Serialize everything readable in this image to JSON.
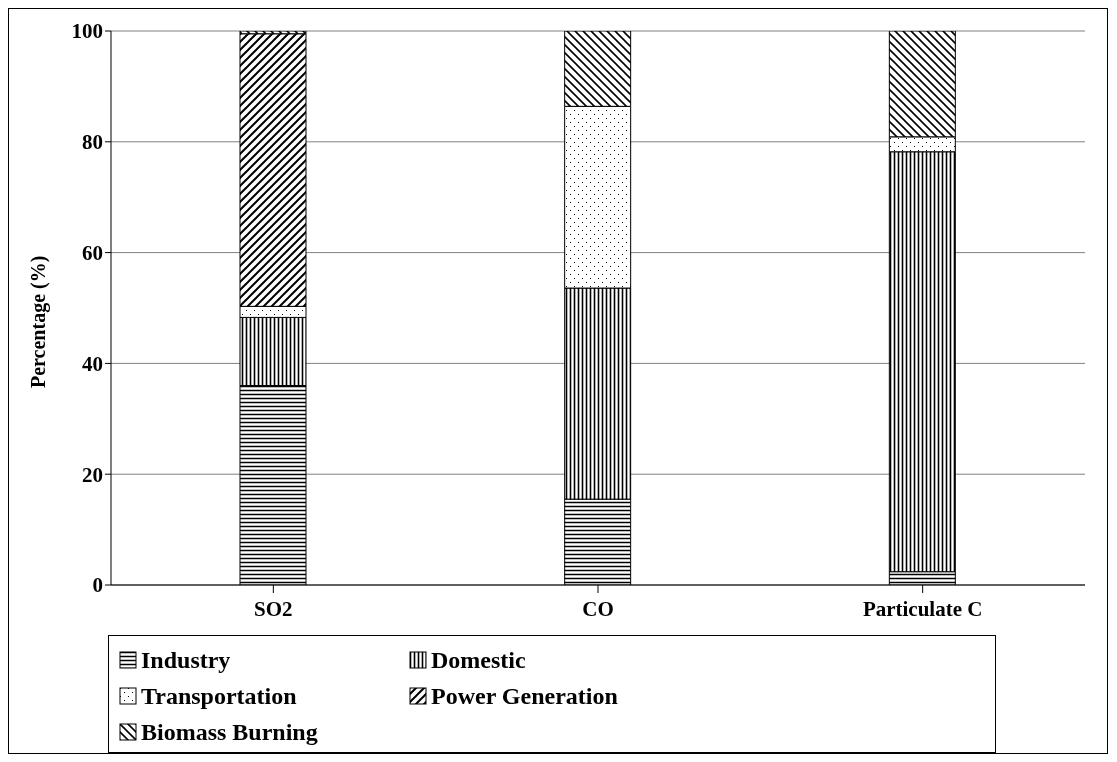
{
  "chart_data": {
    "type": "bar",
    "stacked": true,
    "ylabel": "Percentage (%)",
    "categories": [
      "SO2",
      "CO",
      "Particulate C"
    ],
    "series": [
      {
        "name": "Industry",
        "color": "#000000",
        "values": [
          36,
          15.5,
          2.4
        ]
      },
      {
        "name": "Domestic",
        "color": "#000000",
        "values": [
          12.3,
          38.1,
          75.8
        ]
      },
      {
        "name": "Transportation",
        "color": "#000000",
        "values": [
          2,
          32.8,
          2.7
        ]
      },
      {
        "name": "Power Generation",
        "color": "#000000",
        "values": [
          49.2,
          0,
          0
        ]
      },
      {
        "name": "Biomass Burning",
        "color": "#000000",
        "values": [
          0.5,
          13.6,
          19.1
        ]
      }
    ],
    "ylim": [
      0,
      100
    ],
    "yticks": [
      0,
      20,
      40,
      60,
      80,
      100
    ],
    "grid": "y",
    "legend": "bottom"
  }
}
